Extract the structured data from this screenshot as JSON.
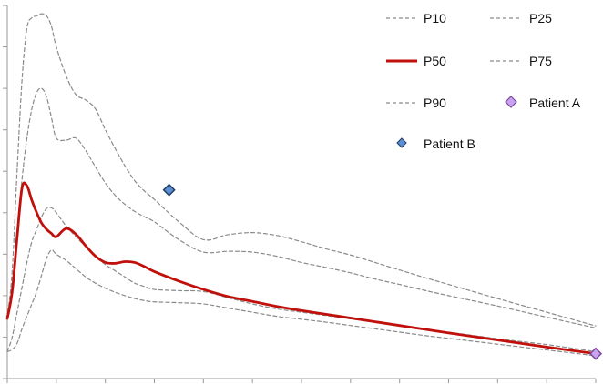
{
  "chart_data": {
    "type": "line",
    "title": "",
    "xlabel": "",
    "ylabel": "",
    "x": [
      0,
      0.1,
      0.2,
      0.3,
      0.4,
      0.5,
      0.6,
      0.7,
      0.8,
      0.9,
      1.0,
      1.2,
      1.4,
      1.6,
      1.8,
      2.0,
      2.2,
      2.4,
      2.6,
      2.8,
      3.0,
      3.5,
      4.0,
      4.5,
      5.0,
      5.5,
      6.0,
      6.5,
      7.0,
      7.5,
      8.0,
      8.5,
      9.0,
      10.0,
      11.0,
      12.0
    ],
    "xlim": [
      0,
      12
    ],
    "ylim": [
      0,
      9
    ],
    "legend_position": "top-right",
    "grid": false,
    "series": [
      {
        "name": "P10",
        "style": "dashed",
        "color": "#8a8a8a",
        "values": [
          0.65,
          0.7,
          0.85,
          1.2,
          1.5,
          1.8,
          2.1,
          2.5,
          2.9,
          3.1,
          3.0,
          2.85,
          2.65,
          2.45,
          2.3,
          2.18,
          2.08,
          2.0,
          1.93,
          1.88,
          1.85,
          1.83,
          1.8,
          1.7,
          1.6,
          1.5,
          1.43,
          1.36,
          1.28,
          1.2,
          1.12,
          1.04,
          0.97,
          0.83,
          0.69,
          0.55
        ]
      },
      {
        "name": "P25",
        "style": "dashed",
        "color": "#8a8a8a",
        "values": [
          0.65,
          1.0,
          1.6,
          2.2,
          2.8,
          3.3,
          3.6,
          3.9,
          4.1,
          4.12,
          4.0,
          3.68,
          3.42,
          3.18,
          2.95,
          2.75,
          2.6,
          2.45,
          2.3,
          2.22,
          2.15,
          2.12,
          2.1,
          1.95,
          1.8,
          1.68,
          1.6,
          1.52,
          1.44,
          1.36,
          1.28,
          1.2,
          1.12,
          0.96,
          0.82,
          0.65
        ]
      },
      {
        "name": "P50",
        "style": "solid",
        "color": "#c0100c",
        "values": [
          1.45,
          2.1,
          3.4,
          4.6,
          4.65,
          4.3,
          4.0,
          3.75,
          3.6,
          3.5,
          3.42,
          3.62,
          3.48,
          3.2,
          2.95,
          2.8,
          2.78,
          2.82,
          2.8,
          2.7,
          2.58,
          2.35,
          2.15,
          1.98,
          1.86,
          1.74,
          1.64,
          1.55,
          1.46,
          1.37,
          1.28,
          1.19,
          1.1,
          0.93,
          0.76,
          0.6
        ]
      },
      {
        "name": "P75",
        "style": "dashed",
        "color": "#8a8a8a",
        "values": [
          1.45,
          2.1,
          3.4,
          4.8,
          5.8,
          6.5,
          6.9,
          7.0,
          6.8,
          6.3,
          5.8,
          5.75,
          5.8,
          5.5,
          5.1,
          4.72,
          4.42,
          4.2,
          4.03,
          3.9,
          3.78,
          3.35,
          3.05,
          3.07,
          3.05,
          2.95,
          2.8,
          2.68,
          2.55,
          2.4,
          2.27,
          2.13,
          2.0,
          1.75,
          1.48,
          1.22
        ]
      },
      {
        "name": "P90",
        "style": "dashed",
        "color": "#8a8a8a",
        "values": [
          1.45,
          2.6,
          5.0,
          7.2,
          8.45,
          8.7,
          8.75,
          8.8,
          8.75,
          8.5,
          8.0,
          7.3,
          6.85,
          6.72,
          6.5,
          6.0,
          5.55,
          5.13,
          4.77,
          4.52,
          4.32,
          3.78,
          3.35,
          3.47,
          3.52,
          3.45,
          3.3,
          3.13,
          2.98,
          2.8,
          2.62,
          2.44,
          2.27,
          1.93,
          1.6,
          1.27
        ]
      }
    ],
    "points": [
      {
        "name": "Patient A",
        "x": 12.0,
        "y": 0.6,
        "marker": "diamond",
        "color": "#c9a3f0",
        "edge": "#7a4a98"
      },
      {
        "name": "Patient B",
        "x": 3.3,
        "y": 4.55,
        "marker": "diamond",
        "color": "#5b8fd1",
        "edge": "#1f3a66"
      }
    ]
  },
  "legend": {
    "p10_label": "P10",
    "p25_label": "P25",
    "p50_label": "P50",
    "p75_label": "P75",
    "p90_label": "P90",
    "patient_a_label": "Patient A",
    "patient_b_label": "Patient B"
  }
}
